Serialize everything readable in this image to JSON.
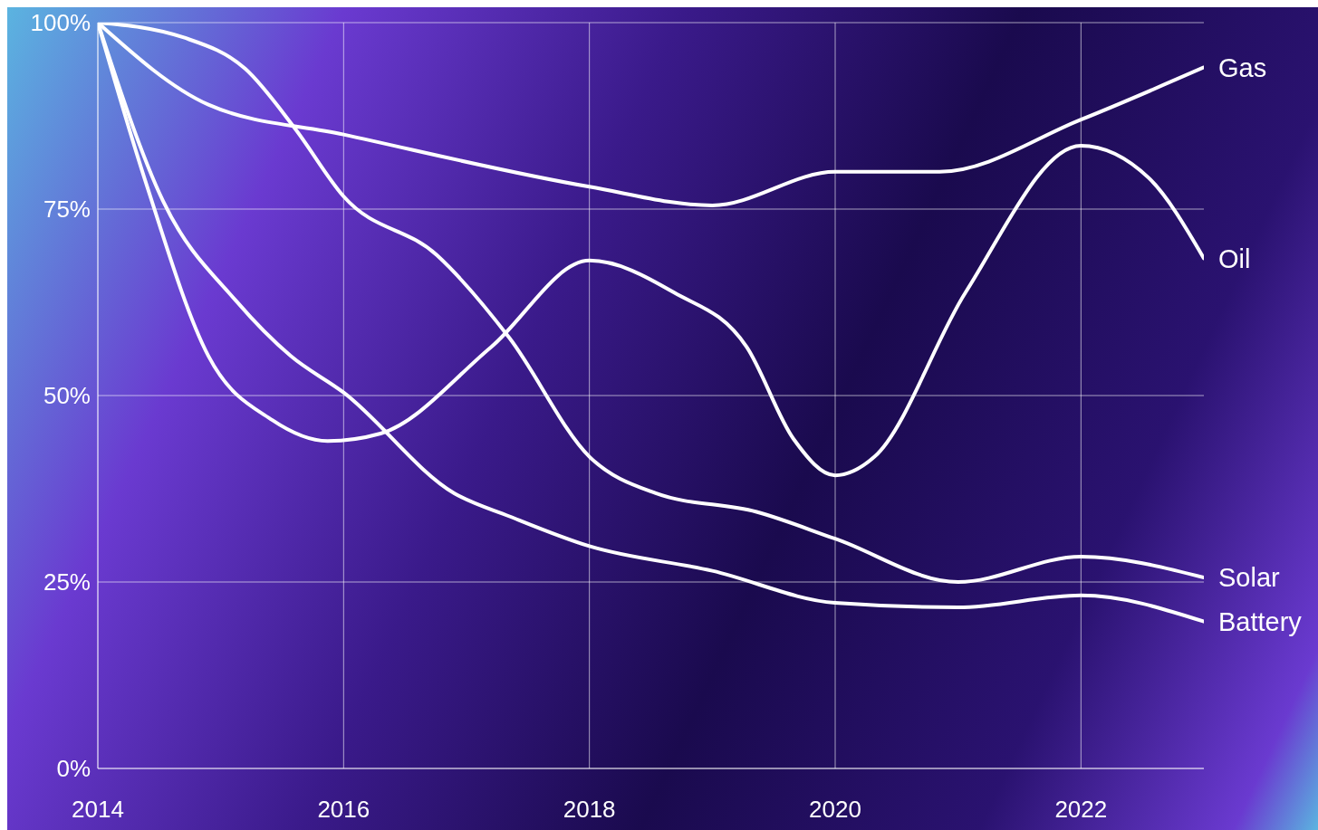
{
  "chart_data": {
    "type": "line",
    "xlim": [
      2014,
      2023
    ],
    "xticks": [
      2014,
      2016,
      2018,
      2020,
      2022
    ],
    "ylim": [
      0,
      100
    ],
    "yticks": [
      {
        "value": 0,
        "label": "0%"
      },
      {
        "value": 25,
        "label": "25%"
      },
      {
        "value": 50,
        "label": "50%"
      },
      {
        "value": 75,
        "label": "75%"
      },
      {
        "value": 100,
        "label": "100%"
      }
    ],
    "grid": true,
    "marker": "none",
    "line_style": "solid",
    "series": [
      {
        "name": "Gas",
        "color": "#ffffff",
        "x": [
          2014,
          2014.9,
          2016,
          2018,
          2019,
          2020,
          2020.85,
          2022,
          2023
        ],
        "values": [
          100,
          89,
          85,
          78,
          75.5,
          80,
          80,
          87,
          94
        ]
      },
      {
        "name": "Oil",
        "color": "#ffffff",
        "x": [
          2014,
          2014.39,
          2014.9,
          2015.42,
          2015.87,
          2016.3,
          2017.2,
          2018,
          2018.69,
          2019.28,
          2019.66,
          2020,
          2020.32,
          2021.06,
          2022,
          2022.55,
          2023
        ],
        "values": [
          100,
          78.6,
          55.3,
          46.7,
          43.9,
          44.9,
          56.5,
          68.1,
          63.8,
          56.5,
          44.2,
          39.3,
          41.8,
          63.8,
          83.5,
          79.2,
          68.4
        ]
      },
      {
        "name": "Solar",
        "color": "#ffffff",
        "x": [
          2014,
          2014.7,
          2015.2,
          2015.6,
          2016,
          2016.76,
          2017.35,
          2018,
          2018.54,
          2019.36,
          2020,
          2021,
          2022,
          2023
        ],
        "values": [
          100,
          98,
          93.8,
          85.9,
          76.7,
          68.8,
          57.7,
          41.8,
          36.9,
          34.4,
          30.8,
          25,
          28.4,
          25.6
        ]
      },
      {
        "name": "Battery",
        "color": "#ffffff",
        "x": [
          2014,
          2014.53,
          2015.13,
          2015.57,
          2016,
          2016.9,
          2017.35,
          2018,
          2019,
          2020,
          2021,
          2022,
          2023
        ],
        "values": [
          100,
          76.1,
          62.6,
          55.3,
          50.4,
          36.9,
          33.8,
          29.8,
          26.5,
          22.2,
          21.6,
          23.2,
          19.7
        ]
      }
    ]
  }
}
